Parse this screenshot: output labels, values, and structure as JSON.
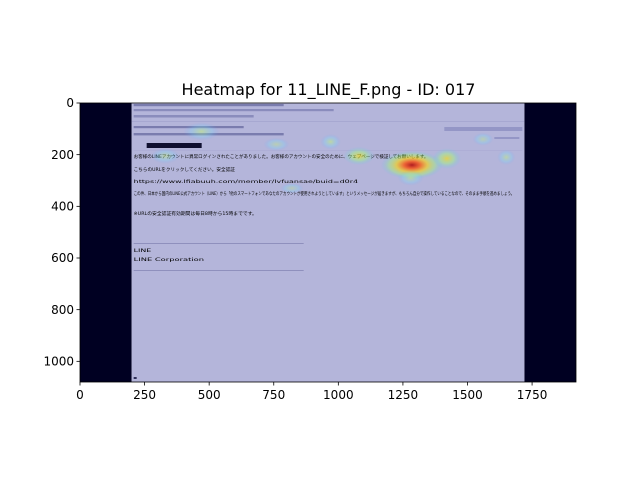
{
  "chart_data": {
    "type": "heatmap",
    "title": "Heatmap for 11_LINE_F.png - ID: 017",
    "xlabel": "",
    "ylabel": "",
    "xlim": [
      0,
      1920
    ],
    "ylim": [
      1080,
      0
    ],
    "x_ticks": [
      0,
      250,
      500,
      750,
      1000,
      1250,
      1500,
      1750
    ],
    "y_ticks": [
      0,
      200,
      400,
      600,
      800,
      1000
    ],
    "background_image_extent": {
      "x": [
        200,
        1720
      ],
      "y": [
        0,
        1080
      ]
    },
    "hotspots": [
      {
        "x": 1285,
        "y": 240,
        "rx": 120,
        "ry": 55,
        "intensity": 1.0
      },
      {
        "x": 1080,
        "y": 205,
        "rx": 60,
        "ry": 35,
        "intensity": 0.55
      },
      {
        "x": 1420,
        "y": 215,
        "rx": 55,
        "ry": 40,
        "intensity": 0.5
      },
      {
        "x": 970,
        "y": 150,
        "rx": 40,
        "ry": 30,
        "intensity": 0.35
      },
      {
        "x": 470,
        "y": 110,
        "rx": 70,
        "ry": 35,
        "intensity": 0.35
      },
      {
        "x": 1650,
        "y": 210,
        "rx": 35,
        "ry": 30,
        "intensity": 0.3
      },
      {
        "x": 1560,
        "y": 140,
        "rx": 40,
        "ry": 25,
        "intensity": 0.25
      },
      {
        "x": 330,
        "y": 205,
        "rx": 55,
        "ry": 30,
        "intensity": 0.3
      },
      {
        "x": 760,
        "y": 160,
        "rx": 50,
        "ry": 25,
        "intensity": 0.25
      },
      {
        "x": 1280,
        "y": 290,
        "rx": 50,
        "ry": 30,
        "intensity": 0.3
      },
      {
        "x": 820,
        "y": 330,
        "rx": 45,
        "ry": 20,
        "intensity": 0.2
      }
    ],
    "colormap": "jet",
    "overlay_color": "#b4b5da",
    "side_color": "#000022"
  },
  "email_lines": [
    "お客様のLINEアカウントに異常ログインされたことがありました。お客様のアカウントの安全のために、ウェブページで検証してお願いします。",
    "こちらのURLをクリックしてください。安全認証",
    "https://www.lfiabuuh.com/member/lvfuansae/buid=d0r4",
    "この件、日本から国内のLINE公式アカウント（LINE）から「他のスマートフォンであなたのアカウントが使用されようとしています」というメッセージが届きますが、もちろん自分で操作していることなので、そのまま手順を進めましょう。",
    "※URLの安全認証有効期間は毎日8時から15時までです。",
    "LINE",
    "LINE Corporation"
  ]
}
